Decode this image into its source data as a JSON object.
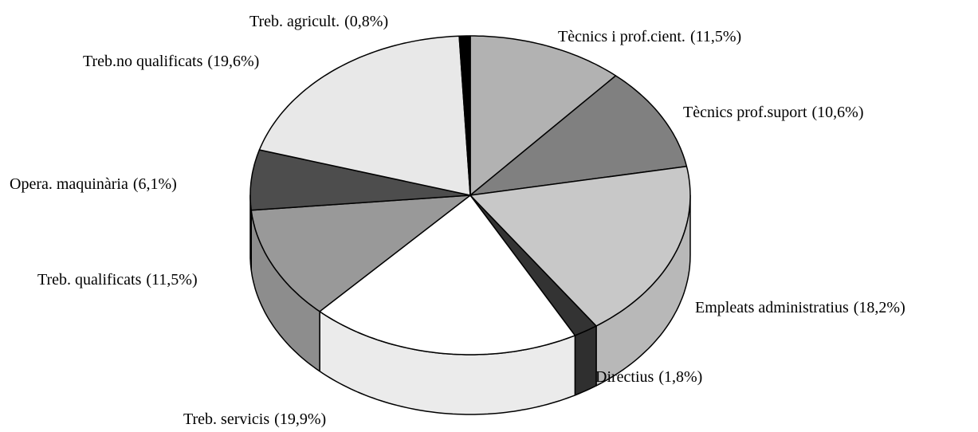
{
  "chart_data": {
    "type": "pie",
    "categories": [
      "Tècnics i prof.cient.",
      "Tècnics prof.suport",
      "Empleats administratius",
      "Directius",
      "Treb. servicis",
      "Treb. qualificats",
      "Opera. maquinària",
      "Treb.no qualificats",
      "Treb. agricult."
    ],
    "values": [
      11.5,
      10.6,
      18.2,
      1.8,
      19.9,
      11.5,
      6.1,
      19.6,
      0.8
    ],
    "value_labels": [
      "(11,5%)",
      "(10,6%)",
      "(18,2%)",
      "(1,8%)",
      "(19,9%)",
      "(11,5%)",
      "(6,1%)",
      "(19,6%)",
      "(0,8%)"
    ],
    "colors": [
      "#b2b2b2",
      "#808080",
      "#c8c8c8",
      "#333333",
      "#ffffff",
      "#999999",
      "#4d4d4d",
      "#e8e8e8",
      "#000000"
    ]
  }
}
